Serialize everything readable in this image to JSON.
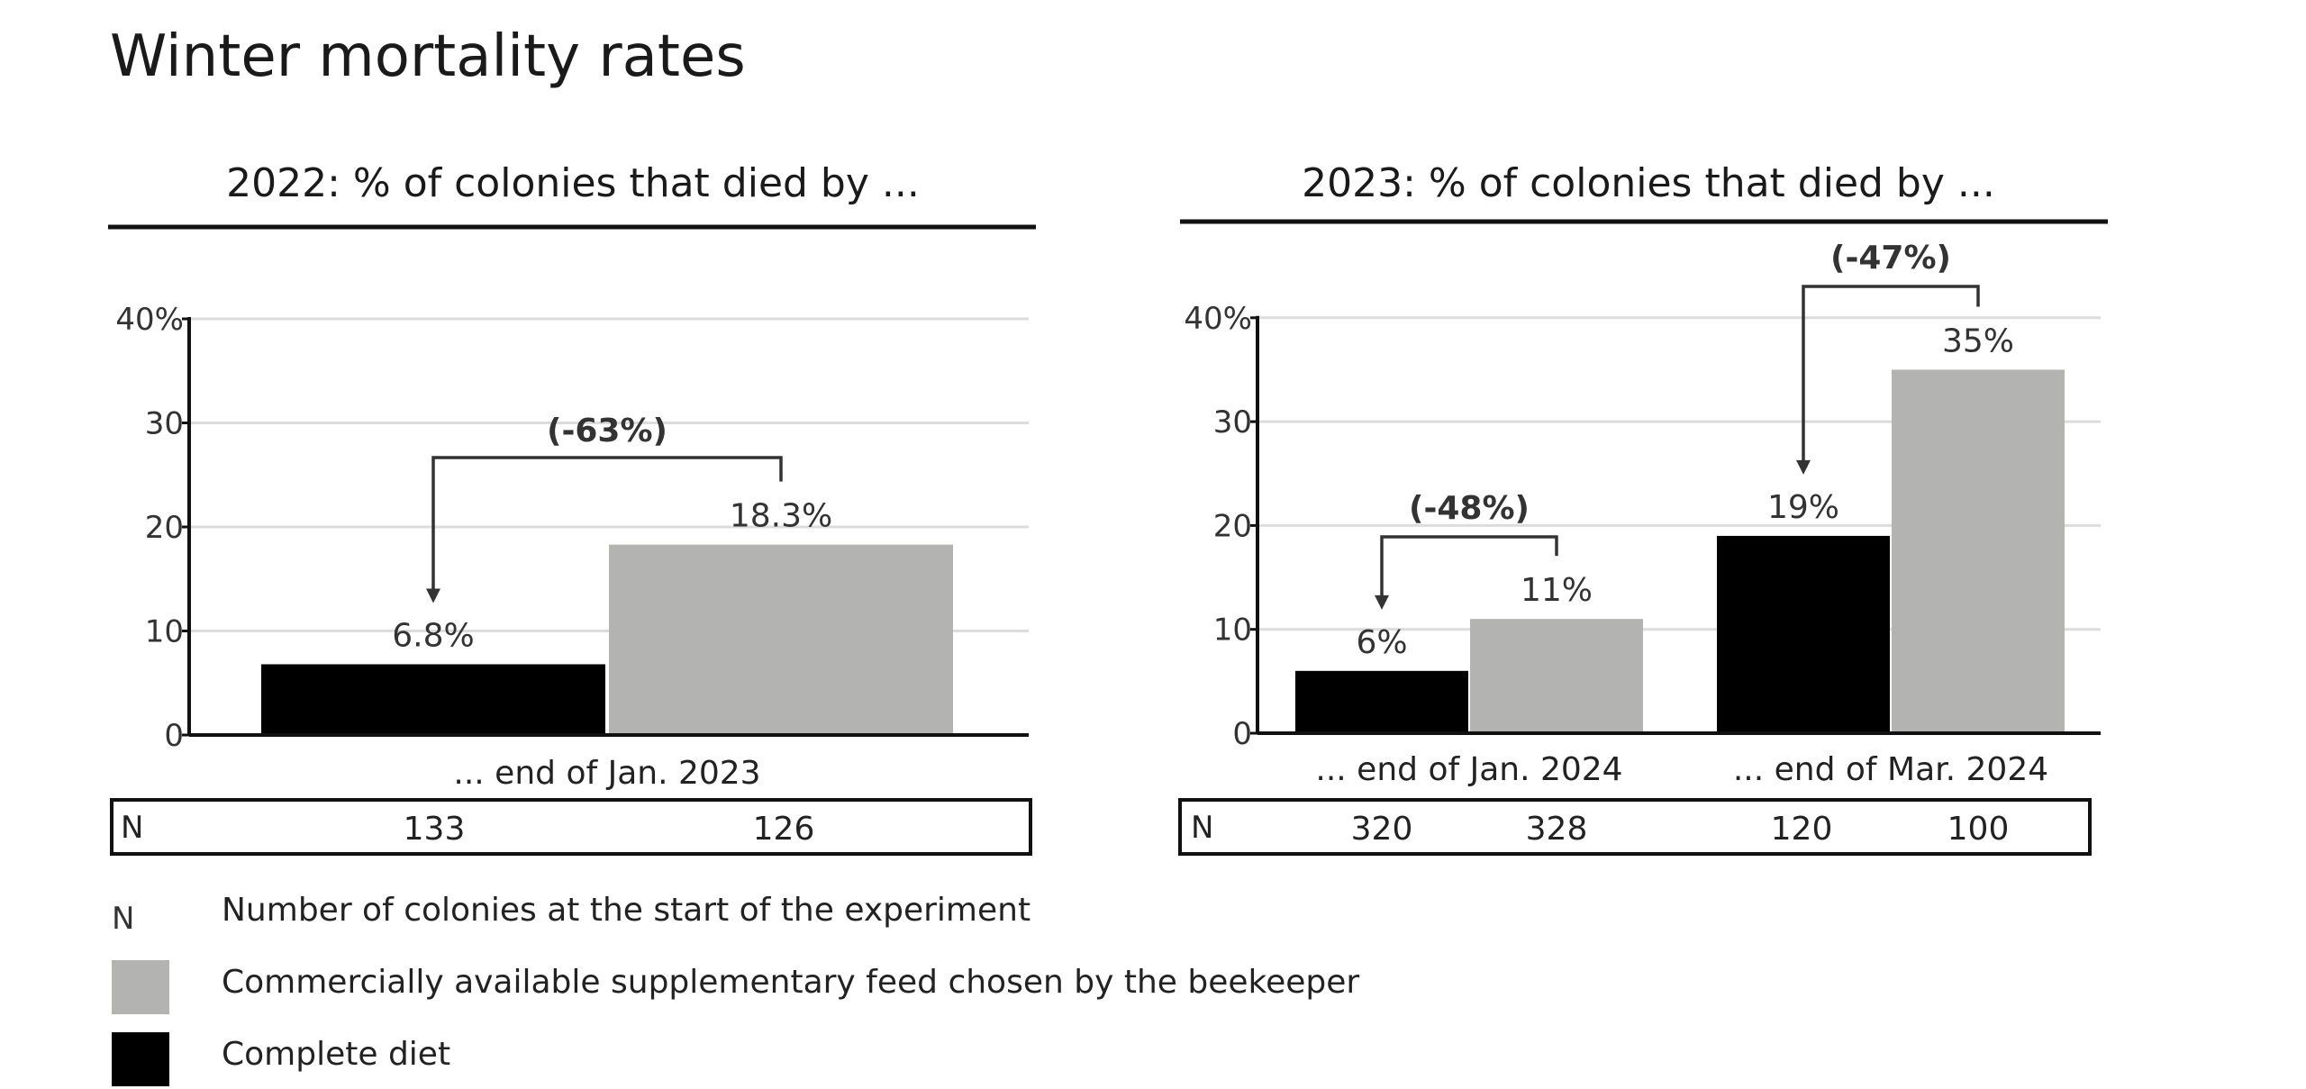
{
  "title": "Winter mortality rates",
  "colors": {
    "complete": "#000000",
    "commercial": "#b3b3b2",
    "axis": "#111111",
    "grid": "#dcdcdc",
    "text": "#333333"
  },
  "chart_data": [
    {
      "type": "bar",
      "title": "2022: % of colonies that died by ...",
      "categories": [
        "... end of Jan. 2023"
      ],
      "series": [
        {
          "name": "Complete diet",
          "values": [
            6.8
          ],
          "labels": [
            "6.8%"
          ]
        },
        {
          "name": "Commercially available supplementary feed chosen by the beekeeper",
          "values": [
            18.3
          ],
          "labels": [
            "18.3%"
          ]
        }
      ],
      "ylim": [
        0,
        40
      ],
      "yticks": [
        0,
        10,
        20,
        30,
        40
      ],
      "ytick_labels": [
        "0",
        "10",
        "20",
        "30",
        "40%"
      ],
      "grid": true,
      "annotations": [
        "(-63%)"
      ],
      "n_label": "N",
      "n_values": [
        "133",
        "126"
      ]
    },
    {
      "type": "bar",
      "title": "2023: % of colonies that died by ...",
      "categories": [
        "... end of Jan. 2024",
        "... end of Mar. 2024"
      ],
      "series": [
        {
          "name": "Complete diet",
          "values": [
            6,
            19
          ],
          "labels": [
            "6%",
            "19%"
          ]
        },
        {
          "name": "Commercially available supplementary feed chosen by the beekeeper",
          "values": [
            11,
            35
          ],
          "labels": [
            "11%",
            "35%"
          ]
        }
      ],
      "ylim": [
        0,
        40
      ],
      "yticks": [
        0,
        10,
        20,
        30,
        40
      ],
      "ytick_labels": [
        "0",
        "10",
        "20",
        "30",
        "40%"
      ],
      "grid": true,
      "annotations": [
        "(-48%)",
        "(-47%)"
      ],
      "n_label": "N",
      "n_values": [
        "320",
        "328",
        "120",
        "100"
      ]
    }
  ],
  "legend": [
    {
      "key": "N",
      "text": "Number of colonies at the start of the experiment"
    },
    {
      "key": "commercial",
      "text": "Commercially available supplementary feed chosen by the beekeeper"
    },
    {
      "key": "complete",
      "text": "Complete diet"
    }
  ]
}
